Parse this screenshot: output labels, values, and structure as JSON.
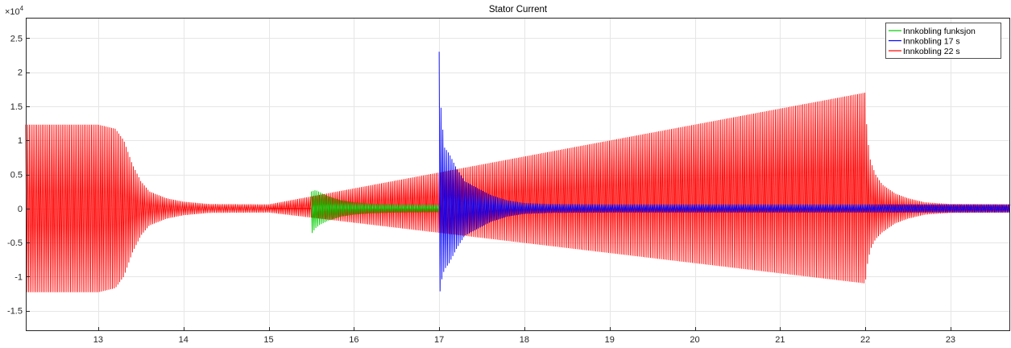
{
  "chart_data": {
    "type": "line",
    "title": "Stator Current",
    "xlabel": "",
    "ylabel": "",
    "xlim": [
      12.15,
      23.7
    ],
    "ylim": [
      -18000,
      28000
    ],
    "y_exponent_label": "×10",
    "y_exponent_power": "4",
    "xticks": [
      13,
      14,
      15,
      16,
      17,
      18,
      19,
      20,
      21,
      22,
      23
    ],
    "xtick_labels": [
      "13",
      "14",
      "15",
      "16",
      "17",
      "18",
      "19",
      "20",
      "21",
      "22",
      "23"
    ],
    "yticks": [
      -15000,
      -10000,
      -5000,
      0,
      5000,
      10000,
      15000,
      20000,
      25000
    ],
    "ytick_labels": [
      "-1.5",
      "-1",
      "-0.5",
      "0",
      "0.5",
      "1",
      "1.5",
      "2",
      "2.5"
    ],
    "grid": true,
    "legend_position": "top-right",
    "series": [
      {
        "name": "Innkobling funksjon",
        "color": "#00cc00",
        "envelope": {
          "x": [
            15.5,
            15.55,
            15.6,
            15.7,
            15.85,
            16.0,
            16.2,
            16.5,
            17.0
          ],
          "upper": [
            2500,
            2700,
            2400,
            1800,
            1200,
            900,
            700,
            600,
            550
          ],
          "lower": [
            -3800,
            -2900,
            -2400,
            -1800,
            -1200,
            -900,
            -700,
            -600,
            -550
          ]
        }
      },
      {
        "name": "Innkobling 17 s",
        "color": "#0000ff",
        "envelope": {
          "x": [
            17.0,
            17.02,
            17.06,
            17.12,
            17.2,
            17.3,
            17.45,
            17.6,
            17.8,
            18.0,
            18.3,
            19.0,
            22.0,
            23.7
          ],
          "upper": [
            23000,
            15000,
            9000,
            8000,
            6000,
            4000,
            3000,
            2000,
            1200,
            800,
            650,
            600,
            600,
            600
          ],
          "lower": [
            -13500,
            -11000,
            -9000,
            -8000,
            -6000,
            -4000,
            -3000,
            -2000,
            -1200,
            -800,
            -650,
            -600,
            -600,
            -600
          ]
        }
      },
      {
        "name": "Innkobling 22 s",
        "color": "#ff0000",
        "envelope": {
          "x": [
            12.15,
            13.0,
            13.2,
            13.3,
            13.4,
            13.5,
            13.6,
            13.8,
            14.0,
            14.3,
            15.0,
            22.0,
            22.02,
            22.06,
            22.12,
            22.2,
            22.35,
            22.5,
            22.7,
            23.0,
            23.7
          ],
          "upper": [
            12300,
            12300,
            11700,
            10000,
            6500,
            4000,
            2500,
            1500,
            1000,
            650,
            600,
            17000,
            11000,
            7000,
            5000,
            3500,
            2200,
            1500,
            900,
            650,
            600
          ],
          "lower": [
            -12300,
            -12300,
            -11700,
            -10000,
            -6500,
            -4000,
            -2500,
            -1500,
            -1000,
            -650,
            -600,
            -11000,
            -8500,
            -6000,
            -4500,
            -3500,
            -2200,
            -1500,
            -900,
            -650,
            -600
          ]
        }
      }
    ]
  }
}
